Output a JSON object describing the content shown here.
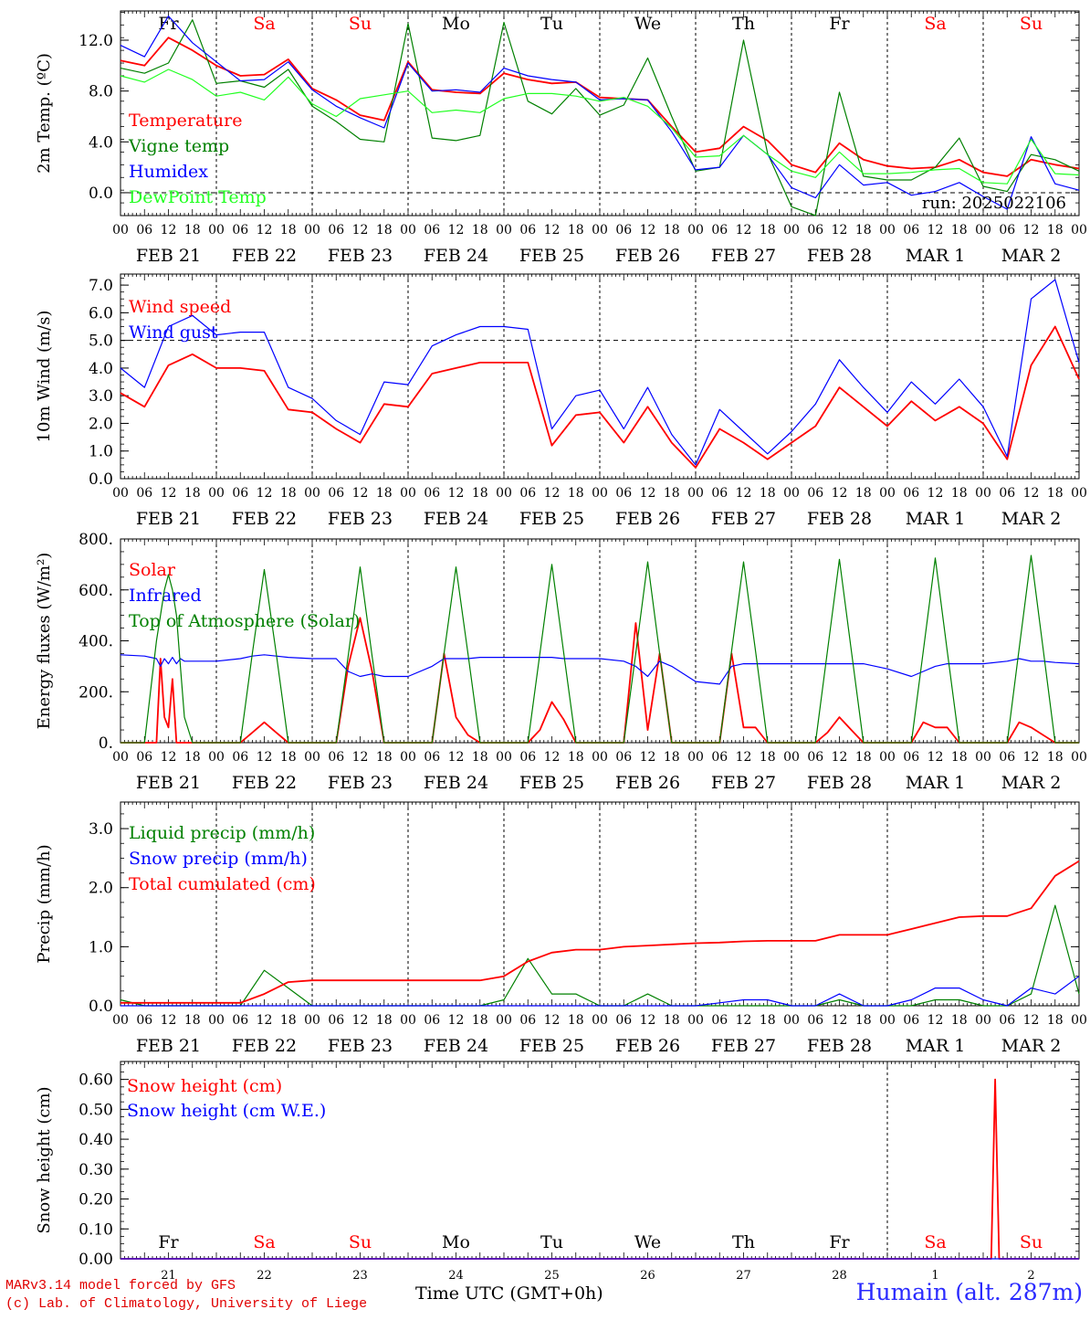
{
  "footer": {
    "credit_line1": "MARv3.14 model forced by GFS",
    "credit_line2": "(c) Lab. of Climatology, University of Liege",
    "station": "Humain (alt. 287m)",
    "x_axis_title": "Time UTC (GMT+0h)"
  },
  "colors": {
    "red": "#ff0000",
    "green": "#008000",
    "blue": "#0000ff",
    "lightgreen": "#22ff22",
    "weekend": "#ff0000"
  },
  "chart_data": [
    {
      "type": "line",
      "ylabel": "2m Temp. (ºC)",
      "ylim": [
        -1.8,
        14.3
      ],
      "yticks": [
        "0.0",
        "4.0",
        "8.0",
        "12.0"
      ],
      "ytick_values": [
        0,
        4,
        8,
        12
      ],
      "dashed_y": 0,
      "run_label": "run: 2025022106",
      "day_names": [
        "Fr",
        "Sa",
        "Su",
        "Mo",
        "Tu",
        "We",
        "Th",
        "Fr",
        "Sa",
        "Su"
      ],
      "x_hours": [
        0,
        6,
        12,
        18,
        24,
        30,
        36,
        42,
        48,
        54,
        60,
        66,
        72,
        78,
        84,
        90,
        96,
        102,
        108,
        114,
        120,
        126,
        132,
        138,
        144,
        150,
        156,
        162,
        168,
        174,
        180,
        186,
        192,
        198,
        204,
        210,
        216,
        222,
        228,
        234,
        240
      ],
      "series": [
        {
          "name": "Temperature",
          "color": "red",
          "values": [
            10.4,
            10.0,
            12.2,
            11.2,
            10.0,
            9.2,
            9.3,
            10.5,
            8.2,
            7.3,
            6.1,
            5.7,
            10.3,
            8.1,
            7.9,
            7.8,
            9.4,
            8.9,
            8.6,
            8.7,
            7.5,
            7.4,
            7.3,
            5.2,
            3.2,
            3.5,
            5.2,
            4.1,
            2.2,
            1.6,
            3.9,
            2.6,
            2.1,
            1.9,
            2.0,
            2.6,
            1.6,
            1.3,
            2.6,
            2.2,
            1.9
          ]
        },
        {
          "name": "Vigne temp",
          "color": "green",
          "values": [
            9.8,
            9.4,
            10.2,
            13.6,
            8.6,
            8.8,
            8.3,
            9.7,
            6.8,
            5.6,
            4.2,
            4.0,
            13.3,
            4.3,
            4.1,
            4.5,
            13.4,
            7.2,
            6.2,
            8.2,
            6.1,
            6.9,
            10.6,
            6.0,
            1.7,
            2.0,
            12.0,
            3.1,
            -1.1,
            -1.8,
            7.9,
            1.3,
            1.0,
            1.0,
            2.0,
            4.3,
            0.5,
            0.1,
            3.0,
            2.6,
            1.7
          ]
        },
        {
          "name": "Humidex",
          "color": "blue",
          "values": [
            11.6,
            10.7,
            13.9,
            11.8,
            10.3,
            8.8,
            8.9,
            10.3,
            8.1,
            6.8,
            5.9,
            5.1,
            10.2,
            8.0,
            8.1,
            7.9,
            9.8,
            9.2,
            8.9,
            8.7,
            7.3,
            7.4,
            7.3,
            4.8,
            1.8,
            2.0,
            4.5,
            3.0,
            0.4,
            -0.4,
            2.2,
            0.6,
            0.8,
            -0.2,
            0.1,
            0.8,
            -0.3,
            -1.3,
            4.4,
            0.7,
            0.2
          ]
        },
        {
          "name": "DewPoint Temp",
          "color": "lightgreen",
          "values": [
            9.2,
            8.7,
            9.7,
            8.9,
            7.6,
            7.9,
            7.3,
            9.1,
            7.0,
            6.0,
            7.4,
            7.7,
            8.0,
            6.3,
            6.5,
            6.3,
            7.4,
            7.8,
            7.8,
            7.6,
            7.2,
            7.5,
            6.8,
            5.1,
            2.8,
            2.9,
            4.5,
            3.0,
            1.7,
            1.2,
            3.2,
            1.5,
            1.5,
            1.6,
            1.8,
            1.9,
            0.8,
            0.7,
            4.2,
            1.5,
            1.4
          ]
        }
      ]
    },
    {
      "type": "line",
      "ylabel": "10m Wind (m/s)",
      "ylim": [
        0,
        7.4
      ],
      "yticks": [
        "0.0",
        "1.0",
        "2.0",
        "3.0",
        "4.0",
        "5.0",
        "6.0",
        "7.0"
      ],
      "ytick_values": [
        0,
        1,
        2,
        3,
        4,
        5,
        6,
        7
      ],
      "dashed_y": 5,
      "x_hours": [
        0,
        6,
        12,
        18,
        24,
        30,
        36,
        42,
        48,
        54,
        60,
        66,
        72,
        78,
        84,
        90,
        96,
        102,
        108,
        114,
        120,
        126,
        132,
        138,
        144,
        150,
        156,
        162,
        168,
        174,
        180,
        186,
        192,
        198,
        204,
        210,
        216,
        222,
        228,
        234,
        240
      ],
      "series": [
        {
          "name": "Wind speed",
          "color": "red",
          "values": [
            3.1,
            2.6,
            4.1,
            4.5,
            4.0,
            4.0,
            3.9,
            2.5,
            2.4,
            1.8,
            1.3,
            2.7,
            2.6,
            3.8,
            4.0,
            4.2,
            4.2,
            4.2,
            1.2,
            2.3,
            2.4,
            1.3,
            2.6,
            1.3,
            0.4,
            1.8,
            1.3,
            0.7,
            1.3,
            1.9,
            3.3,
            2.6,
            1.9,
            2.8,
            2.1,
            2.6,
            2.0,
            0.7,
            4.1,
            5.5,
            3.6
          ]
        },
        {
          "name": "Wind gust",
          "color": "blue",
          "values": [
            4.0,
            3.3,
            5.5,
            5.9,
            5.2,
            5.3,
            5.3,
            3.3,
            2.9,
            2.1,
            1.6,
            3.5,
            3.4,
            4.8,
            5.2,
            5.5,
            5.5,
            5.4,
            1.8,
            3.0,
            3.2,
            1.8,
            3.3,
            1.6,
            0.5,
            2.5,
            1.7,
            0.9,
            1.7,
            2.7,
            4.3,
            3.3,
            2.4,
            3.5,
            2.7,
            3.6,
            2.6,
            0.8,
            6.5,
            7.2,
            4.2
          ]
        }
      ]
    },
    {
      "type": "line",
      "ylabel": "Energy fluxes (W/m²)",
      "ylim": [
        0,
        800
      ],
      "yticks": [
        "0.",
        "200.",
        "400.",
        "600.",
        "800."
      ],
      "ytick_values": [
        0,
        200,
        400,
        600,
        800
      ],
      "x_hours": [
        0,
        6,
        9,
        10,
        11,
        12,
        13,
        14,
        15,
        16,
        18,
        24,
        30,
        33,
        36,
        39,
        42,
        48,
        54,
        57,
        60,
        63,
        66,
        72,
        78,
        81,
        84,
        87,
        90,
        96,
        102,
        105,
        108,
        111,
        114,
        120,
        126,
        129,
        132,
        135,
        138,
        144,
        150,
        153,
        156,
        159,
        162,
        168,
        174,
        177,
        180,
        183,
        186,
        192,
        198,
        201,
        204,
        207,
        210,
        216,
        222,
        225,
        228,
        231,
        234,
        240
      ],
      "series": [
        {
          "name": "Solar",
          "color": "red",
          "values": [
            0,
            0,
            0,
            330,
            100,
            60,
            250,
            0,
            0,
            0,
            0,
            0,
            0,
            40,
            80,
            40,
            0,
            0,
            0,
            300,
            490,
            280,
            0,
            0,
            0,
            350,
            100,
            30,
            0,
            0,
            0,
            50,
            160,
            90,
            0,
            0,
            0,
            470,
            50,
            350,
            0,
            0,
            0,
            350,
            60,
            60,
            0,
            0,
            0,
            40,
            100,
            50,
            0,
            0,
            0,
            80,
            60,
            60,
            0,
            0,
            0,
            80,
            60,
            30,
            0,
            0
          ]
        },
        {
          "name": "Infrared",
          "color": "blue",
          "values": [
            345,
            340,
            330,
            300,
            330,
            310,
            335,
            310,
            330,
            320,
            320,
            320,
            330,
            340,
            345,
            340,
            335,
            330,
            330,
            280,
            260,
            270,
            260,
            260,
            300,
            330,
            330,
            330,
            335,
            335,
            335,
            335,
            335,
            330,
            330,
            330,
            320,
            300,
            260,
            320,
            300,
            240,
            230,
            300,
            310,
            310,
            310,
            310,
            310,
            310,
            310,
            310,
            310,
            290,
            260,
            280,
            300,
            310,
            310,
            310,
            320,
            330,
            320,
            320,
            315,
            310
          ]
        },
        {
          "name": "Top of Atmosphere (Solar)",
          "color": "green",
          "values": [
            0,
            0,
            400,
            500,
            600,
            660,
            600,
            500,
            300,
            100,
            0,
            0,
            0,
            350,
            680,
            350,
            0,
            0,
            0,
            340,
            690,
            340,
            0,
            0,
            0,
            350,
            690,
            350,
            0,
            0,
            0,
            350,
            700,
            350,
            0,
            0,
            0,
            350,
            710,
            350,
            0,
            0,
            0,
            360,
            710,
            360,
            0,
            0,
            0,
            360,
            720,
            360,
            0,
            0,
            0,
            360,
            725,
            360,
            0,
            0,
            0,
            370,
            735,
            370,
            0,
            0
          ]
        }
      ]
    },
    {
      "type": "line",
      "ylabel": "Precip (mm/h)",
      "ylim": [
        0,
        3.45
      ],
      "yticks": [
        "0.0",
        "1.0",
        "2.0",
        "3.0"
      ],
      "ytick_values": [
        0,
        1,
        2,
        3
      ],
      "x_hours": [
        0,
        6,
        12,
        18,
        24,
        30,
        36,
        42,
        48,
        54,
        60,
        66,
        72,
        78,
        84,
        90,
        96,
        102,
        108,
        114,
        120,
        126,
        132,
        138,
        144,
        150,
        156,
        162,
        168,
        174,
        180,
        186,
        192,
        198,
        204,
        210,
        216,
        222,
        228,
        234,
        240
      ],
      "series": [
        {
          "name": "Liquid precip (mm/h)",
          "color": "green",
          "values": [
            0.1,
            0.0,
            0.0,
            0.0,
            0.0,
            0.0,
            0.6,
            0.3,
            0.0,
            0.0,
            0.0,
            0.0,
            0.0,
            0.0,
            0.0,
            0.0,
            0.1,
            0.8,
            0.2,
            0.2,
            0.0,
            0.0,
            0.2,
            0.0,
            0.0,
            0.0,
            0.0,
            0.0,
            0.0,
            0.0,
            0.1,
            0.0,
            0.0,
            0.0,
            0.1,
            0.1,
            0.0,
            0.0,
            0.2,
            1.7,
            0.2
          ]
        },
        {
          "name": "Snow precip (mm/h)",
          "color": "blue",
          "values": [
            0.0,
            0.0,
            0.0,
            0.0,
            0.0,
            0.0,
            0.0,
            0.0,
            0.0,
            0.0,
            0.0,
            0.0,
            0.0,
            0.0,
            0.0,
            0.0,
            0.0,
            0.0,
            0.0,
            0.0,
            0.0,
            0.0,
            0.0,
            0.0,
            0.0,
            0.05,
            0.1,
            0.1,
            0.0,
            0.0,
            0.2,
            0.0,
            0.0,
            0.1,
            0.3,
            0.3,
            0.1,
            0.0,
            0.3,
            0.2,
            0.5
          ]
        },
        {
          "name": "Total cumulated (cm)",
          "color": "red",
          "values": [
            0.05,
            0.05,
            0.05,
            0.05,
            0.05,
            0.05,
            0.2,
            0.4,
            0.43,
            0.43,
            0.43,
            0.43,
            0.43,
            0.43,
            0.43,
            0.43,
            0.5,
            0.75,
            0.9,
            0.95,
            0.95,
            1.0,
            1.02,
            1.04,
            1.06,
            1.07,
            1.09,
            1.1,
            1.1,
            1.1,
            1.2,
            1.2,
            1.2,
            1.3,
            1.4,
            1.5,
            1.52,
            1.52,
            1.65,
            2.2,
            2.45
          ]
        }
      ]
    },
    {
      "type": "line",
      "ylabel": "Snow height (cm)",
      "ylim": [
        0,
        0.66
      ],
      "yticks": [
        "0.00",
        "0.10",
        "0.20",
        "0.30",
        "0.40",
        "0.50",
        "0.60"
      ],
      "ytick_values": [
        0,
        0.1,
        0.2,
        0.3,
        0.4,
        0.5,
        0.6
      ],
      "day_names": [
        "Fr",
        "Sa",
        "Su",
        "Mo",
        "Tu",
        "We",
        "Th",
        "Fr",
        "Sa",
        "Su"
      ],
      "day_numbers": [
        "21",
        "22",
        "23",
        "24",
        "25",
        "26",
        "27",
        "28",
        "1",
        "2"
      ],
      "x_hours": [
        0,
        216,
        218,
        219,
        220,
        240
      ],
      "series": [
        {
          "name": "Snow height (cm)",
          "color": "red",
          "values": [
            0,
            0,
            0,
            0.6,
            0,
            0
          ]
        },
        {
          "name": "Snow height (cm W.E.)",
          "color": "blue",
          "values": [
            0,
            0,
            0,
            0,
            0,
            0
          ]
        }
      ]
    }
  ],
  "extended_series": {
    "panel0": {
      "x_hours": [
        240
      ],
      "series": {
        "Temperature": [
          1.9
        ],
        "Vigne temp": [
          1.7
        ],
        "Humidex": [
          0.2
        ],
        "DewPoint Temp": [
          1.4
        ]
      }
    }
  },
  "x_axis": {
    "hour_ticks": [
      "00",
      "06",
      "12",
      "18"
    ],
    "date_labels": [
      "FEB 21",
      "FEB 22",
      "FEB 23",
      "FEB 24",
      "FEB 25",
      "FEB 26",
      "FEB 27",
      "FEB 28",
      "MAR  1",
      "MAR  2"
    ],
    "days": 10
  }
}
